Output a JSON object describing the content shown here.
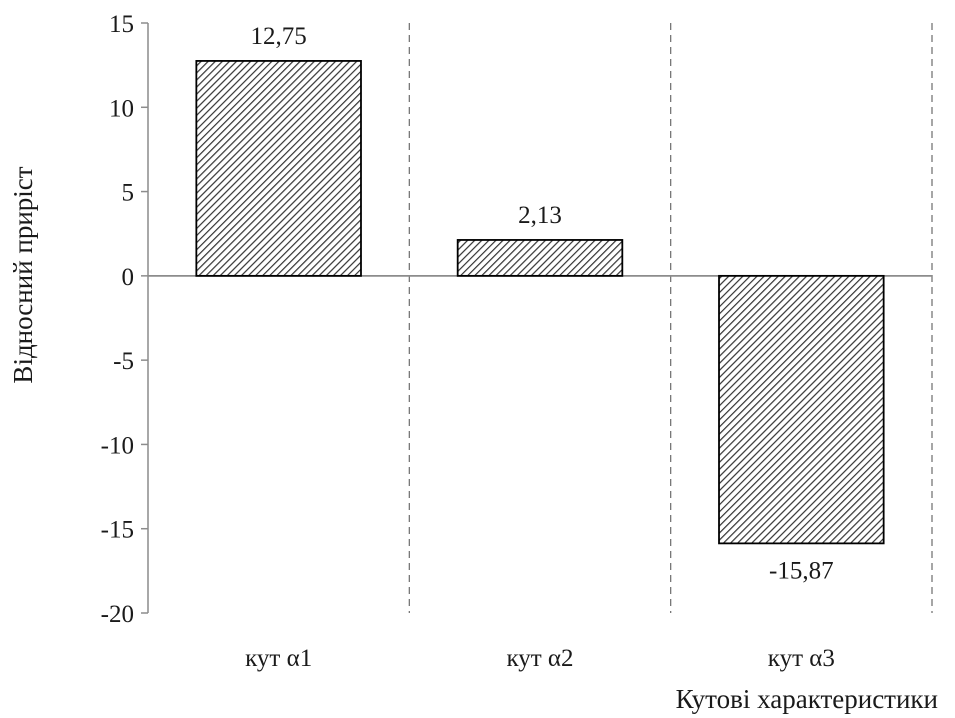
{
  "chart_data": {
    "type": "bar",
    "title": "",
    "xlabel": "Кутові характеристики",
    "ylabel": "Відносний приріст",
    "categories": [
      "кут α1",
      "кут α2",
      "кут α3"
    ],
    "values": [
      12.75,
      2.13,
      -15.87
    ],
    "value_labels": [
      "12,75",
      "2,13",
      "-15,87"
    ],
    "ylim": [
      -20,
      15
    ],
    "yticks": [
      15,
      10,
      5,
      0,
      -5,
      -10,
      -15,
      -20
    ],
    "grid": false,
    "category_separators": "dashed",
    "bar_fill": "diagonal-hatch",
    "colors": {
      "bar_stroke": "#000000",
      "hatch": "#333333",
      "axis": "#8c8c8c",
      "separator": "#777777"
    }
  }
}
